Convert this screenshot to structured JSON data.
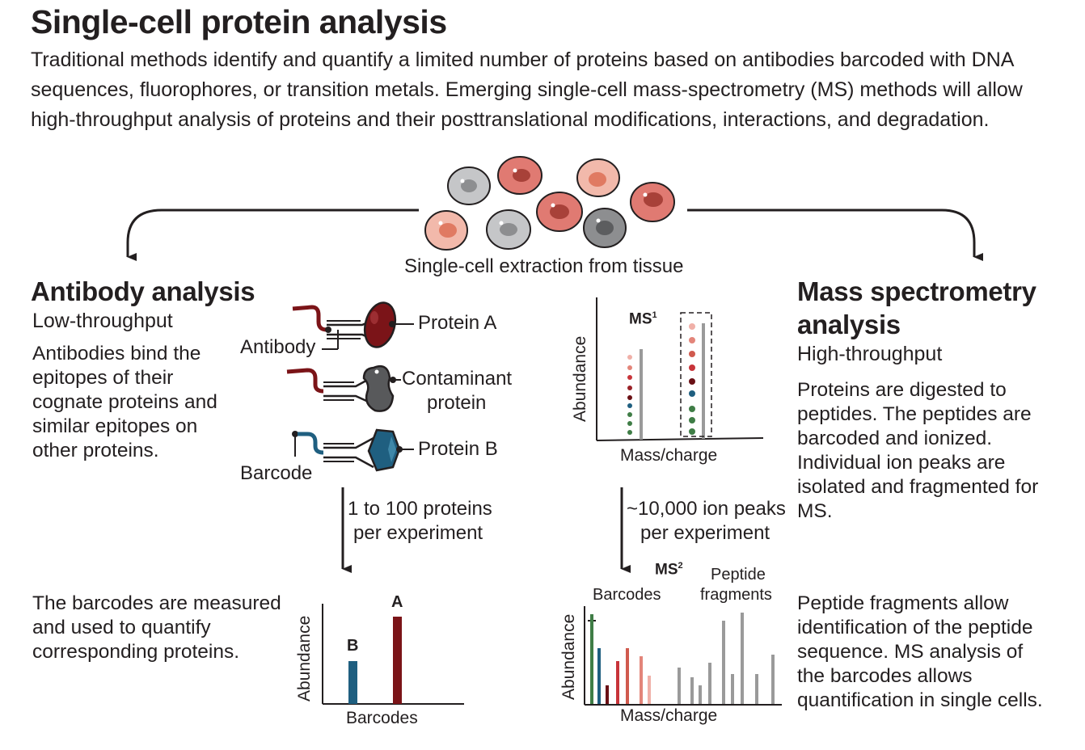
{
  "header": {
    "title": "Single-cell protein analysis",
    "intro": "Traditional methods identify and quantify a limited number of proteins based on antibodies barcoded with DNA sequences, fluorophores, or transition metals. Emerging single-cell mass-spectrometry (MS) methods will allow high-throughput analysis of proteins and their posttranslational modifications, interactions, and degradation."
  },
  "extraction": {
    "label": "Single-cell extraction from tissue"
  },
  "antibody": {
    "title": "Antibody analysis",
    "throughput": "Low-throughput",
    "description": "Antibodies bind the epitopes of their cognate proteins and similar epitopes on other proteins.",
    "labels": {
      "antibody": "Antibody",
      "protein_a": "Protein A",
      "contaminant_1": "Contaminant",
      "contaminant_2": "protein",
      "protein_b": "Protein B",
      "barcode": "Barcode"
    },
    "arrow_1": "1 to 100 proteins",
    "arrow_2": "per experiment",
    "result": "The barcodes are measured and used to quantify corresponding proteins.",
    "chart": {
      "ylabel": "Abundance",
      "xlabel": "Barcodes",
      "bar_b": "B",
      "bar_a": "A"
    }
  },
  "ms": {
    "title_1": "Mass spectrometry",
    "title_2": "analysis",
    "throughput": "High-throughput",
    "description": "Proteins are digested to peptides. The peptides are barcoded and ionized. Individual ion peaks are isolated and fragmented for MS.",
    "ms1": {
      "label": "MS",
      "sup": "1",
      "ylabel": "Abundance",
      "xlabel": "Mass/charge"
    },
    "arrow_1": "~10,000 ion peaks",
    "arrow_2": "per experiment",
    "ms2": {
      "label": "MS",
      "sup": "2",
      "barcodes": "Barcodes",
      "peptide_1": "Peptide",
      "peptide_2": "fragments",
      "ylabel": "Abundance",
      "xlabel": "Mass/charge"
    },
    "result": "Peptide fragments allow identification of the peptide sequence. MS analysis of the barcodes allows quantification in single cells."
  },
  "colors": {
    "dark_red": "#7b1418",
    "blue": "#1f5f80",
    "gray": "#9a9a9a",
    "green": "#3f7d46",
    "red": "#c8343a",
    "salmon": "#e3857a",
    "pink": "#eeaaa0"
  }
}
